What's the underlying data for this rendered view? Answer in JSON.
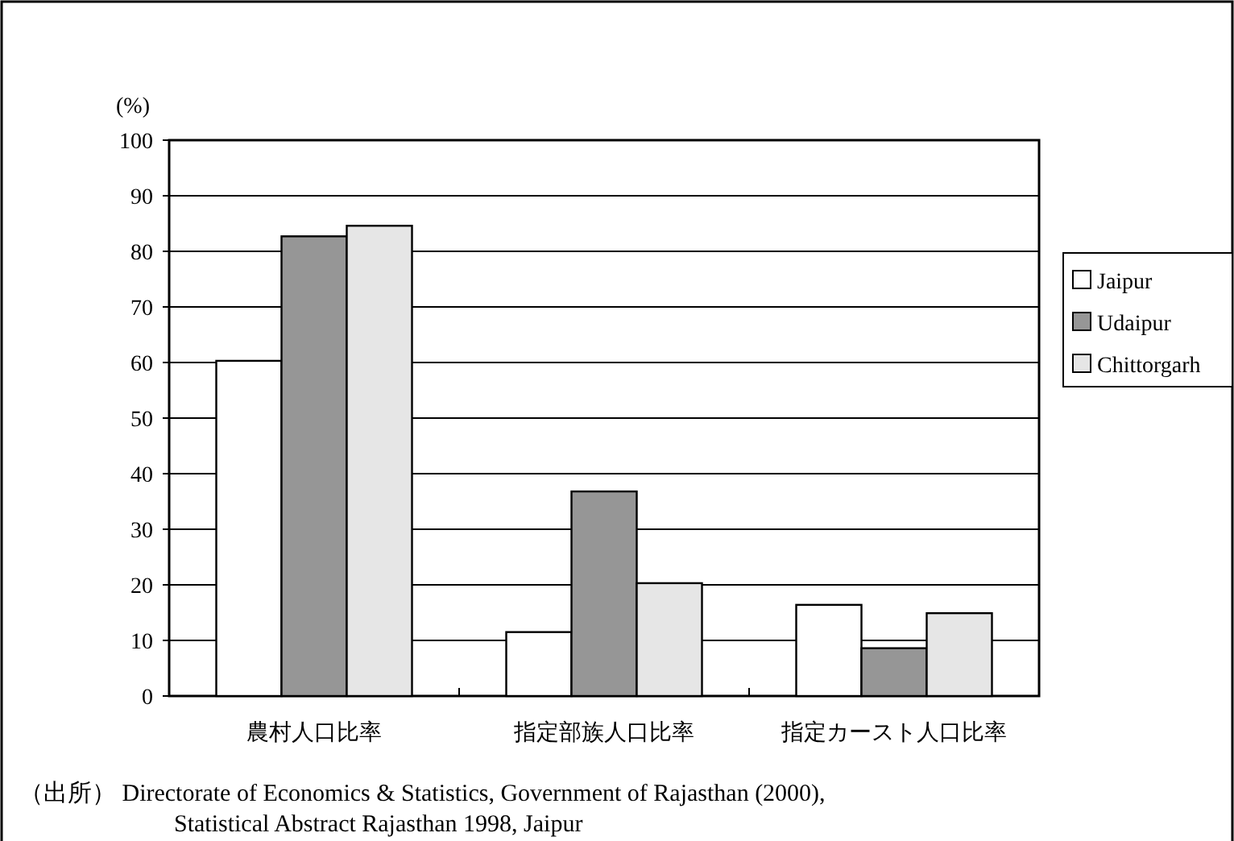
{
  "chart_data": {
    "type": "bar",
    "ylabel": "(%)",
    "categories": [
      "農村人口比率",
      "指定部族人口比率",
      "指定カースト人口比率"
    ],
    "series": [
      {
        "name": "Jaipur",
        "color": "#ffffff",
        "values": [
          60.3,
          11.5,
          16.4
        ]
      },
      {
        "name": "Udaipur",
        "color": "#969696",
        "values": [
          82.7,
          36.8,
          8.6
        ]
      },
      {
        "name": "Chittorgarh",
        "color": "#e6e6e6",
        "values": [
          84.6,
          20.3,
          14.9
        ]
      }
    ],
    "ylim": [
      0,
      100
    ],
    "yticks": [
      0,
      10,
      20,
      30,
      40,
      50,
      60,
      70,
      80,
      90,
      100
    ],
    "grid": "y",
    "legend": "right",
    "annotations": [
      "（出所） Directorate of Economics & Statistics, Government of Rajasthan (2000),",
      "Statistical Abstract Rajasthan 1998, Jaipur"
    ]
  }
}
